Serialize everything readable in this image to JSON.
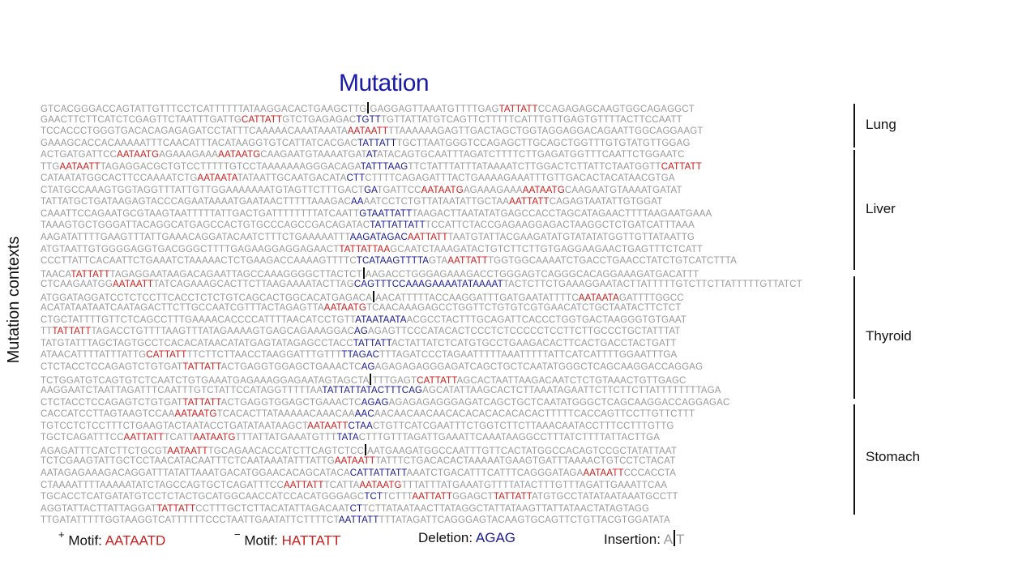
{
  "title": "Mutation",
  "y_axis_label": "Mutation contexts",
  "groups": [
    {
      "label": "Lung",
      "rows": [
        [
          "GTCACGGGACCAGTATTGTTTCCTCATTTTTTATAAGGACACTGAAGCTTG",
          "|",
          "GAGGAGTTAAATGTTTTGAG",
          "+TATTATT",
          "CCAGAGAGCAAGTGGCAGAGGCT"
        ],
        [
          "GAACTTCTTCATCTCGAGTTCTAATTTGATTG",
          "+CATTATT",
          "GTCTGAGAGAC",
          "*TGTT",
          "TGTTATTATGTCAGTTCTTTTTCATTTGTTGAGTGTTTTACTTCCAATT"
        ],
        [
          "TCCACCCTGGGTGACACAGAGAGATCCTATTTCAAAAACAAATAAATA",
          "+AATAATT",
          "TTAAAAAAGAGTTGACTAGCTGGTAGGAGGACAGAATTGGCAGGAAGT"
        ],
        [
          "GAAAGCACCACAAAAATTTCAACATTTACATAAGGTGTCATTATCACGAC",
          "*TATTATT",
          "TGCTTAATGGGTCCAGAGCTTGCAGCTGGTTTGTGTATGTTGGAG"
        ]
      ]
    },
    {
      "label": "Liver",
      "rows": [
        [
          "ACTGATGATTCC",
          "+AATAATG",
          "AGAAAGAAA",
          "+AATAATG",
          "CAAGAATGTAAAATGAT",
          "*AT",
          "ATACAGTGCAATTTAGATCTTTTCTTGAGATGGTTTCAATTCTGGAATC"
        ],
        [
          "TTG",
          "+AATAATT",
          "TAGAGGACGCTGTCCTTTTTGTCCTAAAAAAAGGGACAGA",
          "*TATTTAAG",
          "TTCTATTTATTTATAAAATCTTGGACTCTTATTCTAATGGTT",
          "+CATTATT"
        ],
        [
          "CATAATATGGCACTTCCAAAATCTG",
          "+AATAATA",
          "TATAATTGCAATGACATA",
          "*CTT",
          "CTTTTCAGAGATTTACTGAAAAGAAATTTGTTGACACTACATAACGTGA"
        ],
        [
          "CTATGCCAAAGTGGTAGGTTTATTGTTGGAAAAAAATGTAGTTCTTTGACT",
          "*GA",
          "TGATTCC",
          "+AATAATG",
          "AGAAAGAAA",
          "+AATAATG",
          "CAAGAATGTAAAATGATAT"
        ],
        [
          "TATTATGCTGATAAGAGTACCCAGAATAAAATGAATAACTTTTTAAAGAC",
          "*AA",
          "AATCCTCTGTTATAATATTGCTAA",
          "+AATTATT",
          "CAGAGTAATATTGTGGAT"
        ],
        [
          "CAAATTCCAGAATGCGTAAGTAATTTTTATTGACTGATTTTTTTTATCAATT",
          "*GTAATTATT",
          "TAAGACTTAATATATGAGCCACCTAGCATAGAACTTTTAAGAATGAAA"
        ],
        [
          "TAAAGTGCTGGGATTACAGGCATGAGCCACTGTGCCCAGCCGACAGATAC",
          "*TATTATTATT",
          "TCCATTCTACCGAGAAGGAGACTAAGGCTCTGATCATTTAAA"
        ],
        [
          "AAGATATTTTGAAGTTTATTGAAACAGGATACAATCTTTCTGAAAAATTT",
          "*AAGATAGAC",
          "+AATTATT",
          "TAATGTATTACGAAGATATGTATATATGGTTGTTATAATTG"
        ],
        [
          "ATGTAATTGTGGGGAGGTGACGGGCTTTTGAGAAGGAGGAGAACT",
          "+TATTATTAA",
          "GCAATCTAAAGATACTGTCTTCTTGTGAGGAAGAACTGAGTTTCTCATT"
        ],
        [
          "CCCTTATTCACAATTCTGAAATCTAAAAACTCTGAAGACCAAAAGTTTTC",
          "*TCATAAGTTTTA",
          "GTA",
          "+AATTATT",
          "TGGTGGCAAAATCTGACCTGAACCTATCTGTCATCTTTA"
        ],
        [
          "TAACA",
          "+TATTATT",
          "TAGAGGAATAAGACAGAATTAGCCAAAGGGGCTTACTCT",
          "|",
          "AAGACCTGGGAGAAAGACCTGGGAGTCAGGGCACAGGAAAGATGACATTT"
        ]
      ]
    },
    {
      "label": "Thyroid",
      "rows": [
        [
          "CTCAAGAATGG",
          "+AATAATT",
          "TATCAGAAAGCACTTCTTAAGAAAATACTTAG",
          "*CAGTTTCCAAAGAAAATATAAAAT",
          "TACTCTTCTGAAAGGAATACTTATTTTTGTCTTCTTATTTTTGTTATCT"
        ],
        [
          "ATGGATAGGATCCTCTCCTTCACCTCTCTGTCAGCACTGGCACATGAGACA",
          "|",
          "AACATTTTTACCAAGGATTTGATGAATATTTTC",
          "+AATAATA",
          "GATTTTGGCC"
        ],
        [
          "ACATATAATAATCAATAGACTTCTTGCCAATCGTTTACTAGAGTTA",
          "+AATAATG",
          "TCAACAAAGAGCCTGGTTCTGTGTCGTGAACATCTGCTAATACTTCTCT"
        ],
        [
          "CTGCTATTTTGTTCTCAGCCTTTGAAAACACCCCATTTTAACATCCTGTT",
          "*ATAATAATA",
          "ACGCCTACTTTGCAGATTCACCCTGGTGACTAAGGGTGTGAAT"
        ],
        [
          "TT",
          "+TATTATT",
          "TAGACCTGTTTTAAGTTTATAGAAAAGTGAGCAGAAAGGAC",
          "*AG",
          "AGAGTTCCCATACACTCCCTCTCCCCCTCCTTCTTGCCCTGCTATTTAT"
        ],
        [
          "TATGTATTTAGCTAGTGCCTCACACATAACATATGAGTATAGAGCCTACC",
          "*TATTATT",
          "ACTATTATCTCATGTGCCTGAAGACACTTCACTGACCTACTGATT"
        ],
        [
          "ATAACATTTTATTTATTG",
          "+CATTATT",
          "TTCTTCTTAACCTAAGGATTTGTTT",
          "*TTAGAC",
          "TTTAGATCCCTAGAATTTTTAAATTTTTATTCATCATTTTGGAATTTGA"
        ],
        [
          "CTCTACCTCCAGAGTCTGTGAT",
          "+TATTATT",
          "ACTGAGGTGGAGCTGAAACTC",
          "*AG",
          "AGAGAGAGGGAGATCAGCTGCTCAATATGGGCTCAGCAAGGACCAGGAG"
        ],
        [
          "TCTGGATGTCAGTGTCTCAATCTGTGAAATGAGAAAGGAGAATAGTAGCTA",
          "|",
          "TTTGAGT",
          "+CATTATT",
          "AGCACTAATTAAGACAATCTCTGTAAACTGTTGAGC"
        ],
        [
          "AAGGAATCTAATTAGATTTCAATTTGTCTATTCCATAGGTTTTTAA",
          "*TATTATTATACTTTCAG",
          "AGCATATTAAGCACTCTTAAATAGAATTCTTCTTCTTATTTTTTTTAGA"
        ],
        [
          "CTCTACCTCCAGAGTCTGTGAT",
          "+TATTATT",
          "ACTGAGGTGGAGCTGAAACTC",
          "*AGAG",
          "AGAGAGAGGGAGATCAGCTGCTCAATATGGGCTCAGCAAGGACCAGGAGAC"
        ]
      ]
    },
    {
      "label": "Stomach",
      "rows": [
        [
          "CACCATCCTTAGTAAGTCCAA",
          "+AATAATG",
          "TCACACTTATAAAAACAAACAA",
          "*AAC",
          "AACAACAACAACACACACACACACACTTTTTCACCAGTTCCTTGTTCTTT"
        ],
        [
          "TGTCCTCTCCTTTCTGAAGTACTAATACCTGATATAATAAGCT",
          "+AATAATT",
          "*CTAA",
          "CTGTTCATCGAATTTCTGGTCTTCTTAAACAATACCTTTCCTTTGTTG"
        ],
        [
          "TGCTCAGATTTCC",
          "+AATTATT",
          "TCATT",
          "+AATAATG",
          "TTTATTATGAAATGTTT",
          "*TATA",
          "CTTTGTTTAGATTGAAATTCAAATAAGGCCTTTATCTTTTATTACTTGA"
        ],
        [
          "AGAGATTTCATCTTCTGCGT",
          "+AATAATT",
          "TGCAGAACACCATCTTCAGTCTCC",
          "|",
          "AATGAAGATGGCCAATTTGTTCACTATGGCCACAGTCCGCTATATTAAT"
        ],
        [
          "TCTCGAAGTATTGCTCCTAACATACAATTTCTCAATAAATATTTATTG",
          "+AATAATT",
          "TATTTCTGACACACTAAAAATGAAGTGATTTAAAACTGTCCTCTACAT"
        ],
        [
          "AATAGAGAAAGACAGGATTTATATTAAATGACATGGAACACAGCATACA",
          "*CATTATTATT",
          "AAATCTGACATTTCATTTCAGGGATAGA",
          "+AATAATT",
          "CCCACCTA"
        ],
        [
          "CTAAAATTTTAAAAATATCTAGCCAGTGCTCAGATTTCC",
          "+AATTATT",
          "TCATTA",
          "+AATAATG",
          "TTTATTTATGAAATGTTTTATACTTTGTTTAGATTGAAATTCAA"
        ],
        [
          "TGCACCTCATGATATGTCCTCTACTGCATGGCAACCATCCACATGGGAGC",
          "*TCT",
          "TCTTT",
          "+AATTATT",
          "GGAGCT",
          "+TATTATT",
          "ATGTGCCTATATAATAAATGCCTT"
        ],
        [
          "AGGTATTACTTATTAGGAT",
          "+TATTATT",
          "CCTTTGCTCTTACATATTAGACAAT",
          "*CT",
          "TCTTATAATAACTTATAGGCTATTATAAGTTATTATAACTATAGTAGG"
        ],
        [
          "TTGATATTTTTGGTAAGGTCATTTTTTCCCTAATTGAATATTCTTTTCT",
          "*AATTATT",
          "TTTATAGATTCAGGGAGTACAAGTGCAGTTCTGTTACGTGGATATA"
        ]
      ]
    }
  ],
  "legend": {
    "plus_sign": "+",
    "plus_label": "Motif:",
    "plus_value": "AATAATD",
    "minus_sign": "−",
    "minus_label": "Motif:",
    "minus_value": "HATTATT",
    "deletion_label": "Deletion:",
    "deletion_value": "AGAG",
    "insertion_label": "Insertion:",
    "insertion_left": "A",
    "insertion_right": "T"
  },
  "colors": {
    "context": "#9a9a9a",
    "motif": "#c82020",
    "deletion": "#1a1a90",
    "title": "#1a1aa8"
  }
}
